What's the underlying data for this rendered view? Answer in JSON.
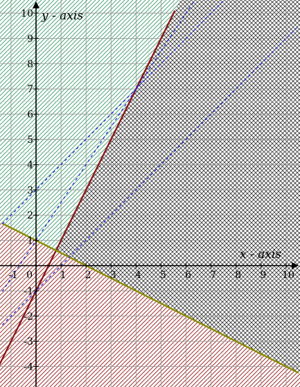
{
  "chart_data": {
    "type": "line",
    "title": "",
    "xlabel": "x - axis",
    "ylabel": "y - axis",
    "xlim": [
      -1.35,
      10.5
    ],
    "ylim": [
      -4.7,
      10.1
    ],
    "grid": true,
    "x_ticks": [
      -1,
      0,
      1,
      2,
      3,
      4,
      5,
      6,
      7,
      8,
      9,
      10
    ],
    "y_ticks": [
      -4,
      -3,
      -2,
      -1,
      1,
      2,
      3,
      4,
      5,
      6,
      7,
      8,
      9,
      10
    ],
    "series": [
      {
        "style": "solid",
        "color": "#8b1a1a",
        "equation": "y = 2x - 1",
        "points": [
          [
            -1.85,
            -4.7
          ],
          [
            5.55,
            10.1
          ]
        ]
      },
      {
        "style": "solid",
        "color": "#8b8b00",
        "equation": "y = -0.5x + 1",
        "points": [
          [
            -1.35,
            1.675
          ],
          [
            10.5,
            -4.25
          ]
        ]
      },
      {
        "style": "dashed",
        "color": "#1f2bd6",
        "equation": "y = 1.5x + 1",
        "points": [
          [
            -1.35,
            -1.025
          ],
          [
            10.5,
            16.75
          ]
        ]
      },
      {
        "style": "dashed",
        "color": "#1f2bd6",
        "equation": "y = x + 3",
        "points": [
          [
            -1.35,
            1.65
          ],
          [
            10.5,
            13.5
          ]
        ]
      },
      {
        "style": "dashed",
        "color": "#1f2bd6",
        "equation": "y = x - 1",
        "points": [
          [
            -1.35,
            -2.35
          ],
          [
            10.5,
            9.5
          ]
        ]
      }
    ],
    "shaded_regions": [
      {
        "name": "y >= 2x - 1",
        "color": "#2e8b57",
        "pattern": "diagonal"
      },
      {
        "name": "y <= 2x - 1",
        "color": "#444444",
        "pattern": "diagonal"
      },
      {
        "name": "y >= -0.5x + 1",
        "color": "#444444",
        "pattern": "diagonal"
      },
      {
        "name": "y <= -0.5x + 1",
        "color": "#8b1a1a",
        "pattern": "diagonal"
      }
    ]
  }
}
